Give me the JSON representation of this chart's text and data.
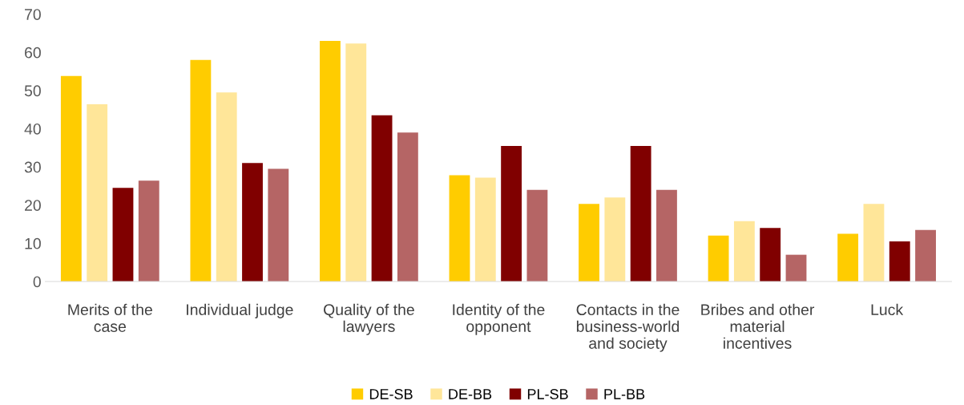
{
  "chart_data": {
    "type": "bar",
    "categories": [
      "Merits of the\ncase",
      "Individual judge",
      "Quality of the\nlawyers",
      "Identity of the\nopponent",
      "Contacts in the\nbusiness-world\nand society",
      "Bribes and other\nmaterial\nincentives",
      "Luck"
    ],
    "series": [
      {
        "name": "DE-SB",
        "color": "#ffcc00",
        "values": [
          53.8,
          58.0,
          63.0,
          27.8,
          20.3,
          12.0,
          12.5
        ]
      },
      {
        "name": "DE-BB",
        "color": "#ffe699",
        "values": [
          46.4,
          49.5,
          62.3,
          27.2,
          22.0,
          15.8,
          20.3
        ]
      },
      {
        "name": "PL-SB",
        "color": "#800000",
        "values": [
          24.5,
          31.0,
          43.5,
          35.5,
          35.5,
          14.0,
          10.5
        ]
      },
      {
        "name": "PL-BB",
        "color": "#b56565",
        "values": [
          26.4,
          29.5,
          39.0,
          24.0,
          24.0,
          7.0,
          13.5
        ]
      }
    ],
    "ylim": [
      0,
      70
    ],
    "yticks": [
      0,
      10,
      20,
      30,
      40,
      50,
      60,
      70
    ],
    "grid": false,
    "legend": "bottom"
  }
}
